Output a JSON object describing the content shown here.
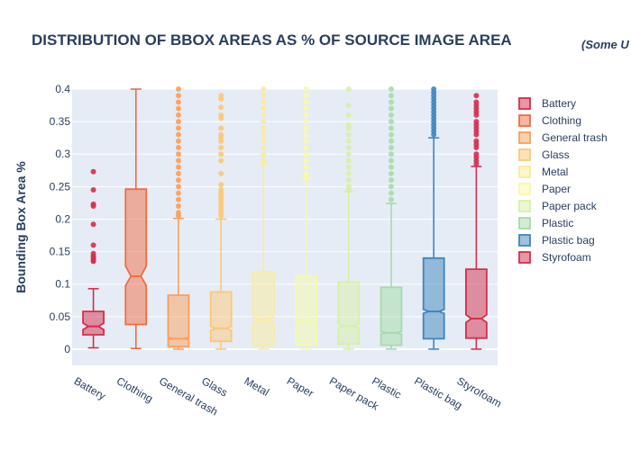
{
  "chart_data": {
    "type": "box",
    "title": "DISTRIBUTION OF BBOX AREAS AS % OF SOURCE IMAGE AREA",
    "subtitle": "(Some U",
    "ylabel": "Bounding Box Area %",
    "xlabel": "",
    "ylim": [
      -0.025,
      0.4
    ],
    "yticks": [
      0,
      0.05,
      0.1,
      0.15,
      0.2,
      0.25,
      0.3,
      0.35,
      0.4
    ],
    "ytick_labels": [
      "0",
      "0.05",
      "0.1",
      "0.15",
      "0.2",
      "0.25",
      "0.3",
      "0.35",
      "0.4"
    ],
    "grid": true,
    "legend_position": "right",
    "plot_background": "#e5ecf6",
    "categories": [
      "Battery",
      "Clothing",
      "General trash",
      "Glass",
      "Metal",
      "Paper",
      "Paper pack",
      "Plastic",
      "Plastic bag",
      "Styrofoam"
    ],
    "series": [
      {
        "name": "Battery",
        "color": "#d62e4a",
        "q1": 0.022,
        "median": 0.035,
        "q3": 0.058,
        "notch_low": 0.03,
        "notch_high": 0.04,
        "whisker_low": 0.002,
        "whisker_high": 0.093,
        "outliers": [
          0.273,
          0.245,
          0.223,
          0.22,
          0.192,
          0.16,
          0.147,
          0.143,
          0.14,
          0.137,
          0.135
        ]
      },
      {
        "name": "Clothing",
        "color": "#f26b43",
        "q1": 0.038,
        "median": 0.112,
        "q3": 0.246,
        "notch_low": 0.098,
        "notch_high": 0.128,
        "whisker_low": 0.001,
        "whisker_high": 0.4,
        "outliers": []
      },
      {
        "name": "General trash",
        "color": "#fb9f59",
        "q1": 0.004,
        "median": 0.016,
        "q3": 0.083,
        "notch_low": 0.015,
        "notch_high": 0.018,
        "whisker_low": 0.0,
        "whisker_high": 0.201,
        "outliers": [
          0.205,
          0.21,
          0.22,
          0.23,
          0.24,
          0.25,
          0.26,
          0.27,
          0.28,
          0.29,
          0.3,
          0.31,
          0.32,
          0.33,
          0.34,
          0.35,
          0.36,
          0.37,
          0.38,
          0.39,
          0.4
        ]
      },
      {
        "name": "Glass",
        "color": "#fdc774",
        "q1": 0.012,
        "median": 0.032,
        "q3": 0.088,
        "notch_low": 0.029,
        "notch_high": 0.035,
        "whisker_low": 0.0,
        "whisker_high": 0.2,
        "outliers": [
          0.205,
          0.21,
          0.215,
          0.22,
          0.225,
          0.23,
          0.235,
          0.24,
          0.245,
          0.253,
          0.27,
          0.29,
          0.3,
          0.31,
          0.32,
          0.325,
          0.33,
          0.34,
          0.355,
          0.36,
          0.372,
          0.385,
          0.39
        ]
      },
      {
        "name": "Metal",
        "color": "#fdeb99",
        "q1": 0.006,
        "median": 0.045,
        "q3": 0.119,
        "notch_low": 0.04,
        "notch_high": 0.05,
        "whisker_low": 0.0,
        "whisker_high": 0.285,
        "outliers": [
          0.29,
          0.3,
          0.31,
          0.32,
          0.33,
          0.34,
          0.35,
          0.36,
          0.37,
          0.38,
          0.39,
          0.4
        ]
      },
      {
        "name": "Paper",
        "color": "#f7f9a9",
        "q1": 0.007,
        "median": 0.042,
        "q3": 0.112,
        "notch_low": 0.039,
        "notch_high": 0.045,
        "whisker_low": 0.0,
        "whisker_high": 0.262,
        "outliers": [
          0.265,
          0.27,
          0.28,
          0.29,
          0.3,
          0.31,
          0.32,
          0.33,
          0.34,
          0.35,
          0.36,
          0.37,
          0.38,
          0.39,
          0.4
        ]
      },
      {
        "name": "Paper pack",
        "color": "#d8f0a5",
        "q1": 0.008,
        "median": 0.035,
        "q3": 0.103,
        "notch_low": 0.032,
        "notch_high": 0.039,
        "whisker_low": 0.0,
        "whisker_high": 0.242,
        "outliers": [
          0.245,
          0.25,
          0.26,
          0.27,
          0.28,
          0.29,
          0.3,
          0.31,
          0.32,
          0.33,
          0.34,
          0.345,
          0.36,
          0.375,
          0.4
        ]
      },
      {
        "name": "Plastic",
        "color": "#a6dbaa",
        "q1": 0.006,
        "median": 0.025,
        "q3": 0.095,
        "notch_low": 0.023,
        "notch_high": 0.027,
        "whisker_low": 0.0,
        "whisker_high": 0.224,
        "outliers": [
          0.23,
          0.24,
          0.25,
          0.26,
          0.27,
          0.28,
          0.29,
          0.3,
          0.31,
          0.32,
          0.33,
          0.34,
          0.35,
          0.36,
          0.37,
          0.38,
          0.39,
          0.4
        ]
      },
      {
        "name": "Plastic bag",
        "color": "#3f86bc",
        "q1": 0.016,
        "median": 0.058,
        "q3": 0.14,
        "notch_low": 0.055,
        "notch_high": 0.061,
        "whisker_low": 0.0,
        "whisker_high": 0.325,
        "outliers": [
          0.33,
          0.335,
          0.34,
          0.345,
          0.35,
          0.355,
          0.36,
          0.365,
          0.37,
          0.375,
          0.38,
          0.385,
          0.39,
          0.395,
          0.4
        ]
      },
      {
        "name": "Styrofoam",
        "color": "#d62e4a",
        "q1": 0.017,
        "median": 0.047,
        "q3": 0.123,
        "notch_low": 0.041,
        "notch_high": 0.053,
        "whisker_low": 0.0,
        "whisker_high": 0.281,
        "outliers": [
          0.285,
          0.29,
          0.295,
          0.3,
          0.31,
          0.315,
          0.32,
          0.33,
          0.335,
          0.34,
          0.345,
          0.35,
          0.36,
          0.365,
          0.37,
          0.375,
          0.38,
          0.39
        ]
      }
    ]
  }
}
